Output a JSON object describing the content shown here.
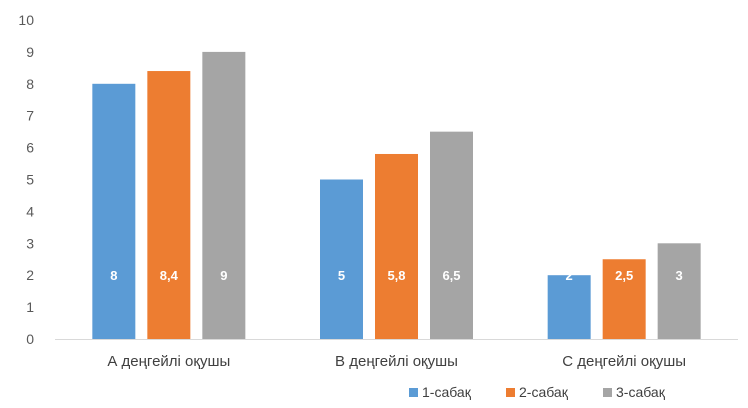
{
  "chart_data": {
    "type": "bar",
    "title": "",
    "xlabel": "",
    "ylabel": "",
    "categories": [
      "А деңгейлі оқушы",
      "В деңгейлі оқушы",
      "С деңгейлі оқушы"
    ],
    "series": [
      {
        "name": "1-сабақ",
        "values": [
          8,
          5,
          2
        ],
        "labels": [
          "8",
          "5",
          "2"
        ],
        "color": "#5b9bd5"
      },
      {
        "name": "2-сабақ",
        "values": [
          8.4,
          5.8,
          2.5
        ],
        "labels": [
          "8,4",
          "5,8",
          "2,5"
        ],
        "color": "#ed7d31"
      },
      {
        "name": "3-сабақ",
        "values": [
          9,
          6.5,
          3
        ],
        "labels": [
          "9",
          "6,5",
          "3"
        ],
        "color": "#a5a5a5"
      }
    ],
    "ylim": [
      0,
      10
    ],
    "yticks": [
      0,
      1,
      2,
      3,
      4,
      5,
      6,
      7,
      8,
      9,
      10
    ],
    "grid": false,
    "legend_position": "bottom-right"
  }
}
